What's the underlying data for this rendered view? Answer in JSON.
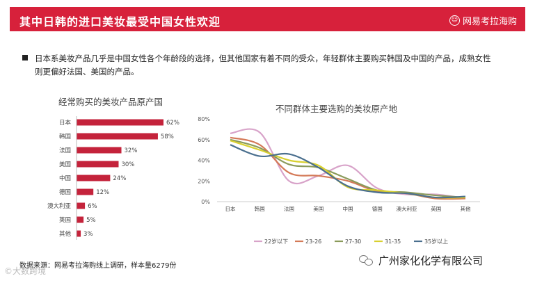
{
  "header": {
    "title": "其中日韩的进口美妆最受中国女性欢迎",
    "brand": "网易考拉海购",
    "brand_icon": "smile-face-icon",
    "color": "#d7213b"
  },
  "description": "日本系美妆产品几乎是中国女性各个年龄段的选择，但其他国家有着不同的受众，年轻群体主要购买韩国及中国的产品，成熟女性则更偏好法国、美国的产品。",
  "source": "数据来源：网易考拉海购线上调研，样本量6279份",
  "wechat_account": "广州家化化学有限公司",
  "watermark": "©大数跨境",
  "chart_data": [
    {
      "type": "bar",
      "title": "经常购买的美妆产品原产国",
      "categories": [
        "日本",
        "韩国",
        "法国",
        "美国",
        "中国",
        "德国",
        "澳大利亚",
        "英国",
        "其他"
      ],
      "values": [
        62,
        58,
        32,
        30,
        24,
        12,
        6,
        5,
        3
      ],
      "value_labels": [
        "62%",
        "58%",
        "32%",
        "30%",
        "24%",
        "12%",
        "6%",
        "5%",
        "3%"
      ],
      "color": "#c4233b",
      "xlim": [
        0,
        70
      ]
    },
    {
      "type": "line",
      "title": "不同群体主要选购的美妆原产地",
      "categories": [
        "日本",
        "韩国",
        "法国",
        "美国",
        "中国",
        "德国",
        "澳大利亚",
        "英国",
        "其他"
      ],
      "yticks": [
        "80%",
        "60%",
        "40%",
        "20%",
        "0%"
      ],
      "ylim": [
        0,
        80
      ],
      "series": [
        {
          "name": "22岁以下",
          "color": "#d8a3c9",
          "values": [
            66,
            67,
            20,
            25,
            35,
            13,
            7,
            7,
            3
          ]
        },
        {
          "name": "23-26",
          "color": "#d47a58",
          "values": [
            62,
            55,
            28,
            25,
            20,
            10,
            8,
            3,
            3
          ]
        },
        {
          "name": "27-30",
          "color": "#8a9a5b",
          "values": [
            60,
            52,
            36,
            33,
            22,
            11,
            9,
            6,
            4
          ]
        },
        {
          "name": "31-35",
          "color": "#d8d030",
          "values": [
            59,
            50,
            40,
            35,
            14,
            11,
            8,
            4,
            4
          ]
        },
        {
          "name": "35岁以上",
          "color": "#4a6f8e",
          "values": [
            55,
            44,
            46,
            33,
            15,
            9,
            8,
            4,
            5
          ]
        }
      ]
    }
  ]
}
